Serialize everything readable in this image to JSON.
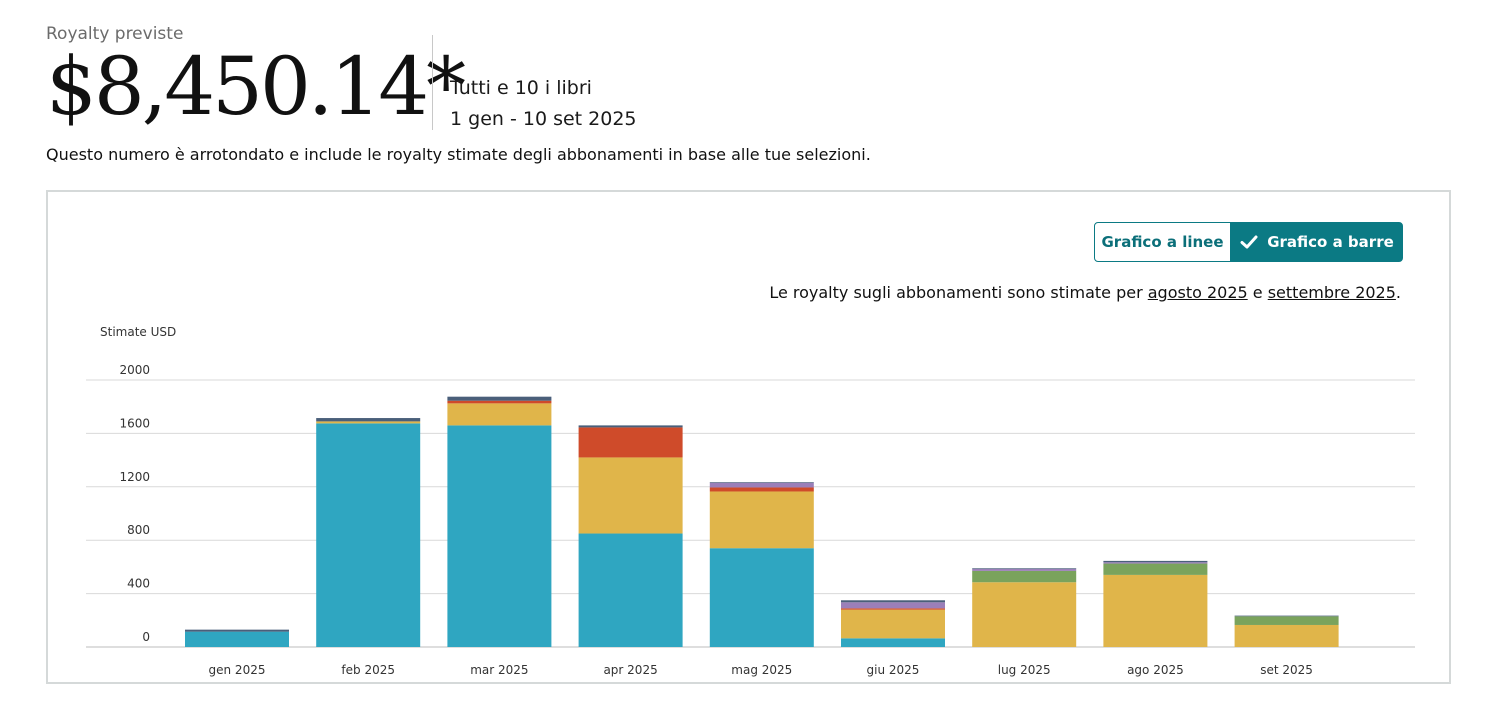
{
  "header": {
    "label": "Royalty previste",
    "amount": "$8,450.14*",
    "scope": "Tutti e 10 i libri",
    "range": "1 gen - 10 set 2025",
    "note": "Questo numero è arrotondato e include le royalty stimate degli abbonamenti in base alle tue selezioni."
  },
  "toggle": {
    "line_label": "Grafico a linee",
    "bar_label": "Grafico a barre",
    "selected": "Grafico a barre"
  },
  "estimate_note": {
    "prefix": "Le royalty sugli abbonamenti sono stimate per ",
    "link1": "agosto 2025",
    "middle": " e ",
    "link2": "settembre 2025",
    "suffix": "."
  },
  "colors": {
    "accent": "#0b7a84",
    "series": [
      "#2fa6c1",
      "#e0b54a",
      "#cf4b2a",
      "#7aa35c",
      "#9b7fb9",
      "#4a5f7a"
    ]
  },
  "chart_data": {
    "type": "bar",
    "stacked": true,
    "ylabel": "Stimate USD",
    "ylim": [
      0,
      2000
    ],
    "yticks": [
      0,
      400,
      800,
      1200,
      1600,
      2000
    ],
    "grid": true,
    "categories": [
      "gen 2025",
      "feb 2025",
      "mar 2025",
      "apr 2025",
      "mag 2025",
      "giu 2025",
      "lug 2025",
      "ago 2025",
      "set 2025"
    ],
    "series": [
      {
        "values": [
          115,
          1675,
          1660,
          850,
          740,
          65,
          0,
          0,
          0
        ]
      },
      {
        "values": [
          0,
          15,
          165,
          570,
          425,
          215,
          485,
          540,
          165
        ]
      },
      {
        "values": [
          0,
          0,
          20,
          225,
          30,
          10,
          0,
          0,
          0
        ]
      },
      {
        "values": [
          0,
          0,
          0,
          0,
          0,
          0,
          85,
          85,
          65
        ]
      },
      {
        "values": [
          0,
          0,
          0,
          0,
          35,
          45,
          15,
          10,
          0
        ]
      },
      {
        "values": [
          15,
          25,
          30,
          15,
          5,
          15,
          5,
          10,
          5
        ]
      }
    ]
  }
}
